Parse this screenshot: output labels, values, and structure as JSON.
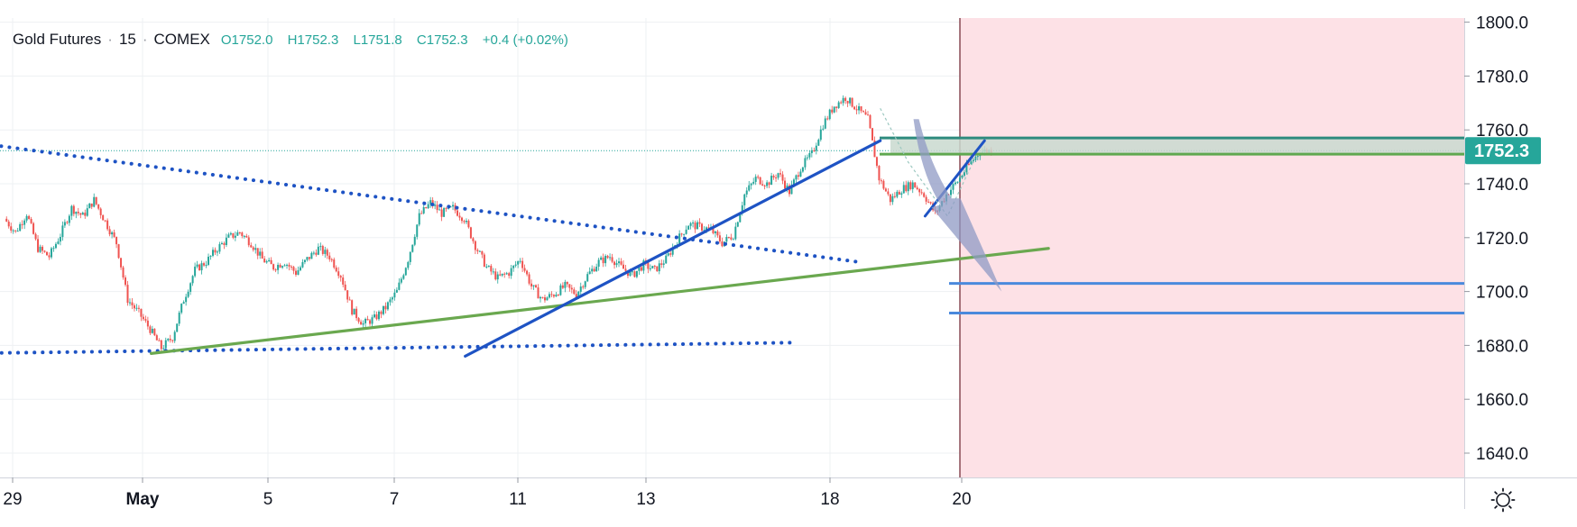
{
  "header": {
    "symbol": "Gold Futures",
    "interval": "15",
    "exchange": "COMEX",
    "open": "O1752.0",
    "high": "H1752.3",
    "low": "L1751.8",
    "close": "C1752.3",
    "change": "+0.4 (+0.02%)"
  },
  "colors": {
    "up": "#26a69a",
    "down": "#ef5350",
    "price_tag": "#26a69a",
    "blue_trend": "#1e53c4",
    "green_trend": "#6aa84f",
    "forecast_zone": "#fde1e6",
    "target_line": "#4a89dc"
  },
  "chart_data": {
    "type": "candlestick",
    "title": "",
    "ylim": [
      1630,
      1805
    ],
    "y_ticks": [
      "1640.0",
      "1660.0",
      "1680.0",
      "1700.0",
      "1720.0",
      "1740.0",
      "1760.0",
      "1780.0",
      "1800.0"
    ],
    "x_ticks": [
      "29",
      "May",
      "5",
      "7",
      "11",
      "13",
      "18",
      "20"
    ],
    "last_price": "1752.3",
    "price_path": [
      [
        0,
        1727
      ],
      [
        1,
        1722
      ],
      [
        2,
        1729
      ],
      [
        3,
        1716
      ],
      [
        4,
        1713
      ],
      [
        5,
        1721
      ],
      [
        6,
        1731
      ],
      [
        7,
        1728
      ],
      [
        8,
        1734
      ],
      [
        9,
        1726
      ],
      [
        10,
        1718
      ],
      [
        11,
        1697
      ],
      [
        12,
        1692
      ],
      [
        13,
        1686
      ],
      [
        14,
        1679
      ],
      [
        15,
        1683
      ],
      [
        16,
        1697
      ],
      [
        17,
        1708
      ],
      [
        18,
        1711
      ],
      [
        19,
        1716
      ],
      [
        20,
        1720
      ],
      [
        21,
        1722
      ],
      [
        22,
        1718
      ],
      [
        23,
        1712
      ],
      [
        24,
        1709
      ],
      [
        25,
        1711
      ],
      [
        26,
        1707
      ],
      [
        27,
        1712
      ],
      [
        28,
        1716
      ],
      [
        29,
        1713
      ],
      [
        30,
        1706
      ],
      [
        31,
        1693
      ],
      [
        32,
        1688
      ],
      [
        33,
        1690
      ],
      [
        34,
        1694
      ],
      [
        35,
        1700
      ],
      [
        36,
        1712
      ],
      [
        37,
        1728
      ],
      [
        38,
        1733
      ],
      [
        39,
        1729
      ],
      [
        40,
        1731
      ],
      [
        41,
        1727
      ],
      [
        42,
        1717
      ],
      [
        43,
        1709
      ],
      [
        44,
        1705
      ],
      [
        45,
        1707
      ],
      [
        46,
        1712
      ],
      [
        47,
        1702
      ],
      [
        48,
        1697
      ],
      [
        49,
        1699
      ],
      [
        50,
        1702
      ],
      [
        51,
        1699
      ],
      [
        52,
        1706
      ],
      [
        53,
        1711
      ],
      [
        54,
        1713
      ],
      [
        55,
        1709
      ],
      [
        56,
        1706
      ],
      [
        57,
        1710
      ],
      [
        58,
        1708
      ],
      [
        59,
        1712
      ],
      [
        60,
        1719
      ],
      [
        61,
        1725
      ],
      [
        62,
        1724
      ],
      [
        63,
        1723
      ],
      [
        64,
        1718
      ],
      [
        65,
        1721
      ],
      [
        66,
        1736
      ],
      [
        67,
        1742
      ],
      [
        68,
        1740
      ],
      [
        69,
        1744
      ],
      [
        70,
        1737
      ],
      [
        71,
        1746
      ],
      [
        72,
        1751
      ],
      [
        73,
        1762
      ],
      [
        74,
        1769
      ],
      [
        75,
        1772
      ],
      [
        76,
        1768
      ],
      [
        77,
        1764
      ],
      [
        78,
        1742
      ],
      [
        79,
        1734
      ],
      [
        80,
        1738
      ],
      [
        81,
        1740
      ],
      [
        82,
        1736
      ],
      [
        83,
        1729
      ],
      [
        84,
        1736
      ],
      [
        85,
        1741
      ],
      [
        86,
        1747
      ],
      [
        87,
        1752
      ],
      [
        88,
        1752.3
      ]
    ],
    "bar_count": 88,
    "trend_lines": [
      {
        "name": "upper-dotted-resistance",
        "style": "dotted",
        "from": [
          -4,
          1756
        ],
        "to": [
          76,
          1711
        ]
      },
      {
        "name": "lower-dotted-support",
        "style": "dotted",
        "from": [
          -4,
          1677
        ],
        "to": [
          70,
          1681
        ]
      },
      {
        "name": "green-rising-support",
        "style": "solid",
        "from": [
          13,
          1677
        ],
        "to": [
          93,
          1716
        ]
      },
      {
        "name": "blue-rising-trendline",
        "style": "solid",
        "from": [
          41,
          1676
        ],
        "to": [
          78,
          1756
        ]
      }
    ],
    "horizontal_levels": [
      1757,
      1751,
      1703,
      1692
    ],
    "forecast_zone": {
      "from_bar": 76
    },
    "forecast_arrow": {
      "from": [
        80,
        1764
      ],
      "to": [
        84,
        1700
      ]
    }
  }
}
